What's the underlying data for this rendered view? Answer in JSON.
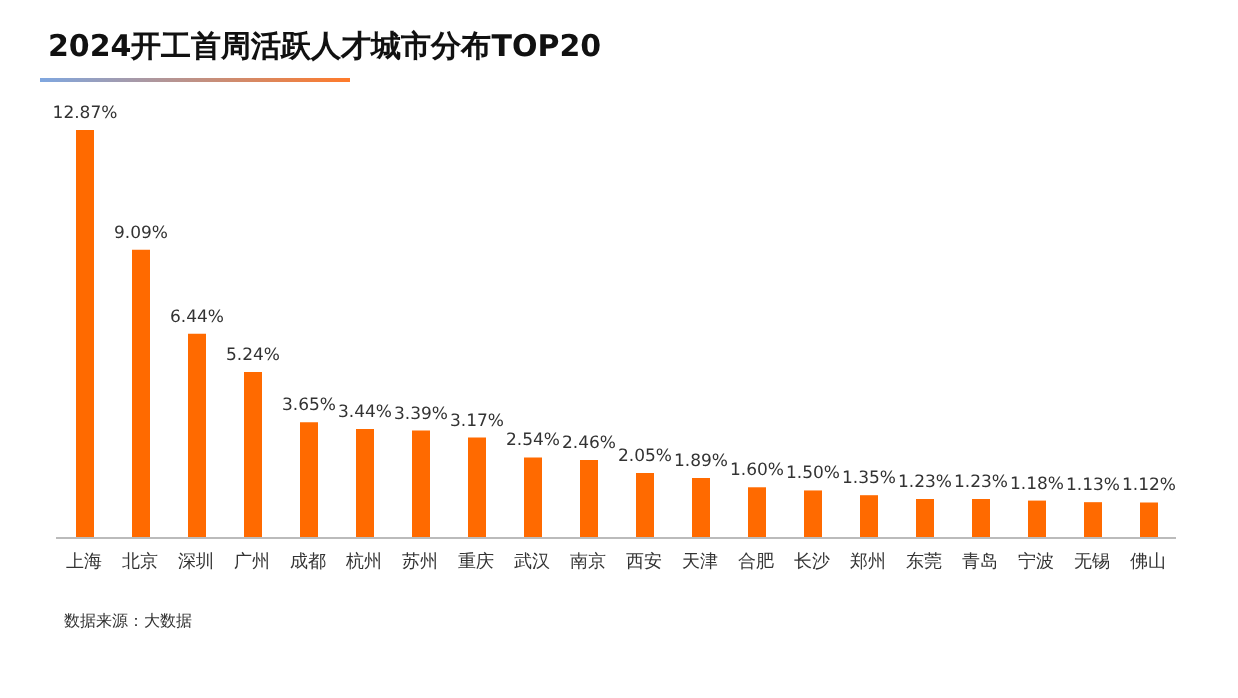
{
  "chart_data": {
    "type": "bar",
    "title": "2024开工首周活跃人才城市分布TOP20",
    "categories": [
      "上海",
      "北京",
      "深圳",
      "广州",
      "成都",
      "杭州",
      "苏州",
      "重庆",
      "武汉",
      "南京",
      "西安",
      "天津",
      "合肥",
      "长沙",
      "郑州",
      "东莞",
      "青岛",
      "宁波",
      "无锡",
      "佛山"
    ],
    "values": [
      12.87,
      9.09,
      6.44,
      5.24,
      3.65,
      3.44,
      3.39,
      3.17,
      2.54,
      2.46,
      2.05,
      1.89,
      1.6,
      1.5,
      1.35,
      1.23,
      1.23,
      1.18,
      1.13,
      1.12
    ],
    "value_labels": [
      "12.87%",
      "9.09%",
      "6.44%",
      "5.24%",
      "3.65%",
      "3.44%",
      "3.39%",
      "3.17%",
      "2.54%",
      "2.46%",
      "2.05%",
      "1.89%",
      "1.60%",
      "1.50%",
      "1.35%",
      "1.23%",
      "1.23%",
      "1.18%",
      "1.13%",
      "1.12%"
    ],
    "color": "#ff6a00",
    "annotations": [
      "数据来源：大数据"
    ]
  }
}
